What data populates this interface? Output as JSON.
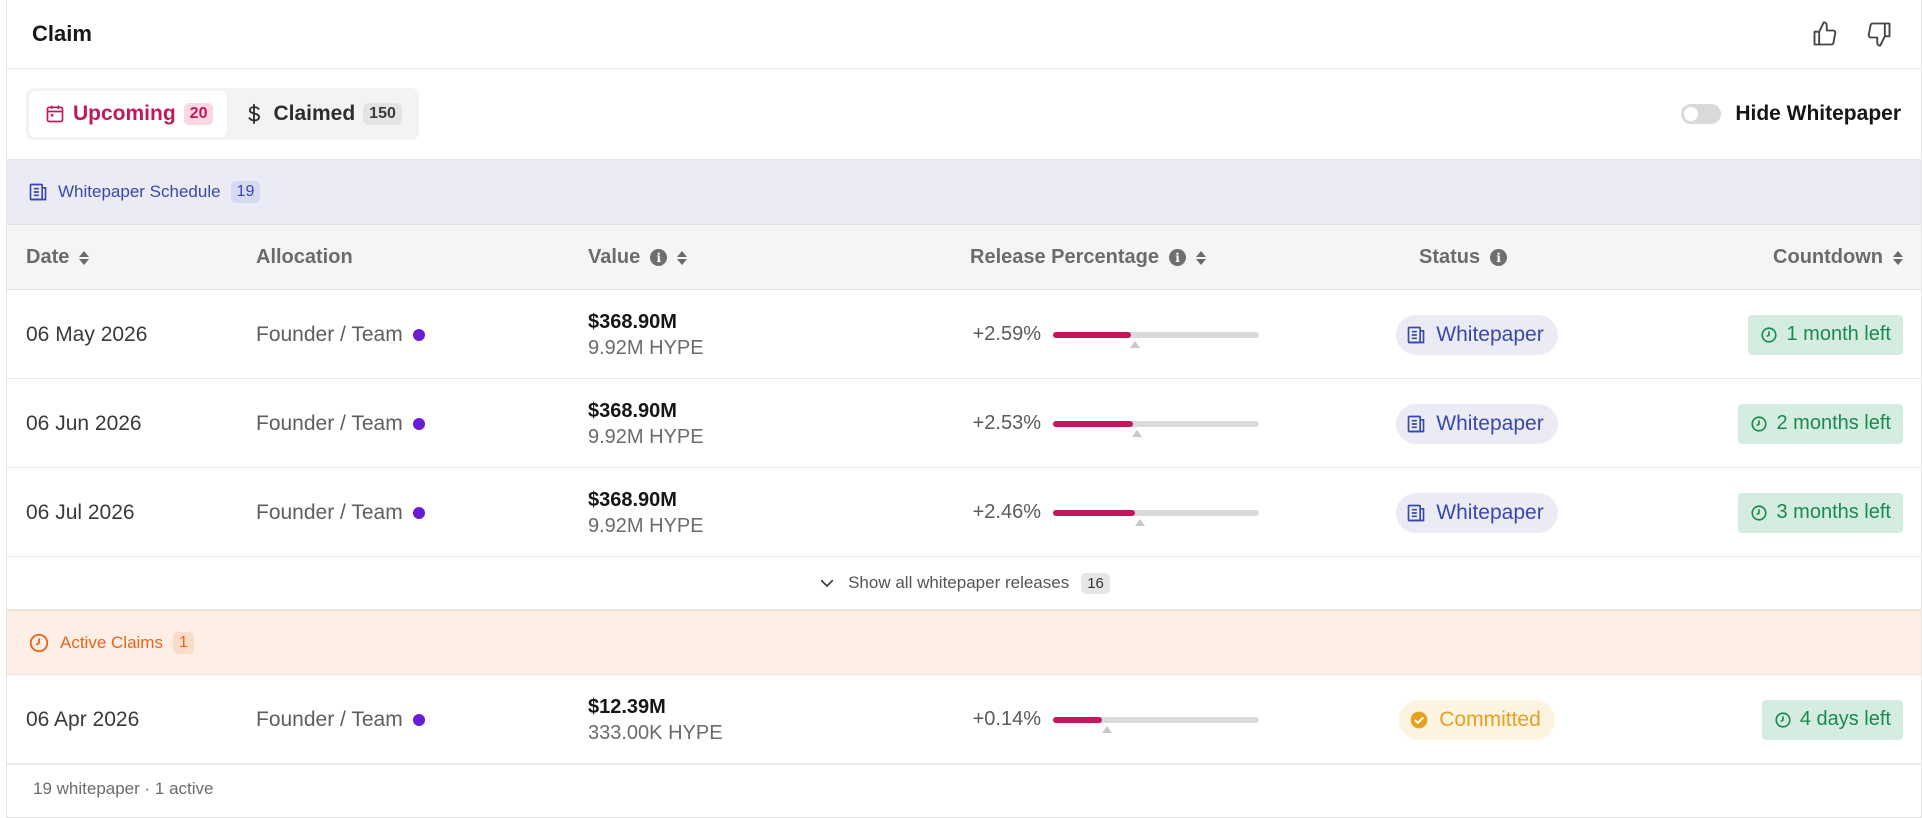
{
  "header": {
    "title": "Claim",
    "icons": [
      "thumbs-up-icon",
      "thumbs-down-icon"
    ]
  },
  "tabs": [
    {
      "label": "Upcoming",
      "count": "20",
      "icon": "calendar-icon",
      "active": true
    },
    {
      "label": "Claimed",
      "count": "150",
      "icon": "dollar-icon",
      "active": false
    }
  ],
  "toggle": {
    "label": "Hide Whitepaper",
    "on": false
  },
  "whitepaper_section": {
    "label": "Whitepaper Schedule",
    "count": "19",
    "icon": "document-icon"
  },
  "columns": {
    "date": "Date",
    "allocation": "Allocation",
    "value": "Value",
    "release": "Release Percentage",
    "status": "Status",
    "countdown": "Countdown"
  },
  "rows": [
    {
      "date": "06 May 2026",
      "allocation": "Founder / Team",
      "usd": "$368.90M",
      "tokens": "9.92M HYPE",
      "pct": "+2.59%",
      "fill": 0.38,
      "status": "Whitepaper",
      "countdown": "1 month left"
    },
    {
      "date": "06 Jun 2026",
      "allocation": "Founder / Team",
      "usd": "$368.90M",
      "tokens": "9.92M HYPE",
      "pct": "+2.53%",
      "fill": 0.39,
      "status": "Whitepaper",
      "countdown": "2 months left"
    },
    {
      "date": "06 Jul 2026",
      "allocation": "Founder / Team",
      "usd": "$368.90M",
      "tokens": "9.92M HYPE",
      "pct": "+2.46%",
      "fill": 0.4,
      "status": "Whitepaper",
      "countdown": "3 months left"
    }
  ],
  "show_all": {
    "label": "Show all whitepaper releases",
    "count": "16"
  },
  "active_section": {
    "label": "Active Claims",
    "count": "1",
    "icon": "clock-icon"
  },
  "active_rows": [
    {
      "date": "06 Apr 2026",
      "allocation": "Founder / Team",
      "usd": "$12.39M",
      "tokens": "333.00K HYPE",
      "pct": "+0.14%",
      "fill": 0.24,
      "status": "Committed",
      "countdown": "4 days left"
    }
  ],
  "footer": {
    "text": "19 whitepaper · 1 active"
  },
  "colors": {
    "accent": "#c2185b",
    "whitepaper": "#3949ab",
    "active": "#e8641b",
    "committed": "#e6a020",
    "countdown": "#1a8a4e",
    "allocation_dot": "#6a1bd9"
  }
}
